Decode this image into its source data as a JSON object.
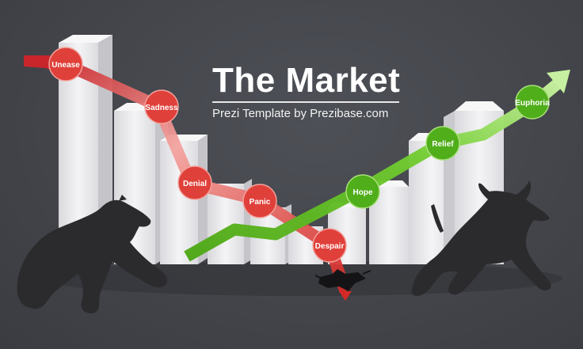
{
  "header": {
    "title": "The Market",
    "subtitle": "Prezi Template by Prezibase.com"
  },
  "bear_trend": {
    "color": "#d93a36",
    "stages": [
      "Unease",
      "Sadness",
      "Denial",
      "Panic",
      "Despair"
    ]
  },
  "bull_trend": {
    "color": "#5fb71f",
    "stages": [
      "Hope",
      "Relief",
      "Euphoria"
    ]
  },
  "colors": {
    "background": "#43454b",
    "bars": "#e9e9ec",
    "silhouettes": "#2b2b2d"
  },
  "icons": [
    "bear-icon",
    "bull-icon",
    "crack-icon",
    "arrow-head-icon"
  ]
}
